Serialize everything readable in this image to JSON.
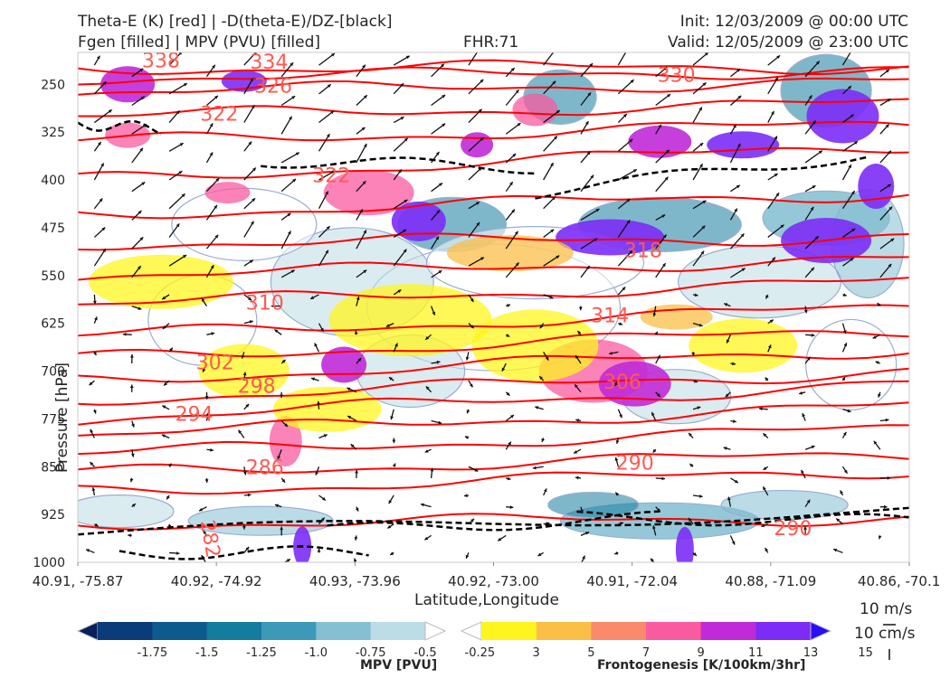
{
  "header": {
    "title_left_1": "Theta-E (K) [red] | -D(theta-E)/DZ-[black]",
    "title_left_2": "Fgen [filled] | MPV (PVU) [filled]",
    "title_center": "FHR:71",
    "title_right_1": "Init: 12/03/2009 @ 00:00 UTC",
    "title_right_2": "Valid: 12/05/2009 @ 23:00 UTC"
  },
  "chart_data": {
    "type": "contour-cross-section",
    "xlabel": "Latitude,Longitude",
    "ylabel": "Pressure [hPa]",
    "y_axis": {
      "scale": "inverted",
      "ylim": [
        1000,
        200
      ]
    },
    "x_ticks": [
      "40.91, -75.87",
      "40.92, -74.92",
      "40.93, -73.96",
      "40.92, -73.00",
      "40.91, -72.04",
      "40.88, -71.09",
      "40.86, -70.1"
    ],
    "y_ticks": [
      250,
      325,
      400,
      475,
      550,
      625,
      700,
      775,
      850,
      925,
      1000
    ],
    "theta_e_contour_labels": [
      {
        "label": "338",
        "x": 0.1,
        "p": 212
      },
      {
        "label": "334",
        "x": 0.23,
        "p": 214
      },
      {
        "label": "326",
        "x": 0.235,
        "p": 252
      },
      {
        "label": "330",
        "x": 0.72,
        "p": 235
      },
      {
        "label": "322",
        "x": 0.17,
        "p": 296
      },
      {
        "label": "322",
        "x": 0.305,
        "p": 392
      },
      {
        "label": "318",
        "x": 0.68,
        "p": 510
      },
      {
        "label": "310",
        "x": 0.225,
        "p": 592
      },
      {
        "label": "314",
        "x": 0.64,
        "p": 612
      },
      {
        "label": "302",
        "x": 0.165,
        "p": 686
      },
      {
        "label": "298",
        "x": 0.215,
        "p": 723
      },
      {
        "label": "306",
        "x": 0.655,
        "p": 716
      },
      {
        "label": "294",
        "x": 0.14,
        "p": 767
      },
      {
        "label": "286",
        "x": 0.225,
        "p": 850
      },
      {
        "label": "290",
        "x": 0.67,
        "p": 843
      },
      {
        "label": "290",
        "x": 0.86,
        "p": 946
      },
      {
        "label": "282",
        "x": 0.16,
        "p": 963
      }
    ],
    "mpv_colorbar": {
      "label": "MPV [PVU]",
      "ticks": [
        "-1.75",
        "-1.5",
        "-1.25",
        "-1.0",
        "-0.75",
        "-0.5",
        "-0.25"
      ],
      "colors": [
        "#08205a",
        "#0b3c7a",
        "#0d5a8c",
        "#147c9e",
        "#3c9ab8",
        "#84bfd4",
        "#bddde6",
        "#ffffff"
      ]
    },
    "fgen_colorbar": {
      "label": "Frontogenesis [K/100km/3hr]",
      "ticks": [
        "3",
        "5",
        "7",
        "9",
        "11",
        "13",
        "15"
      ],
      "colors": [
        "#ffffff",
        "#fff51e",
        "#fbbf48",
        "#fb8a6c",
        "#f95aa0",
        "#c02ad8",
        "#7c2cf6",
        "#2b0ff5"
      ]
    },
    "vector_key": {
      "horizontal": "10 m/s",
      "vertical": "10 cm/s"
    },
    "colors": {
      "theta_e": "#ff0000",
      "dthetae_dz": "#000000",
      "label_text": "#ff5a50",
      "mpv_outline": "#9aaed0"
    }
  }
}
